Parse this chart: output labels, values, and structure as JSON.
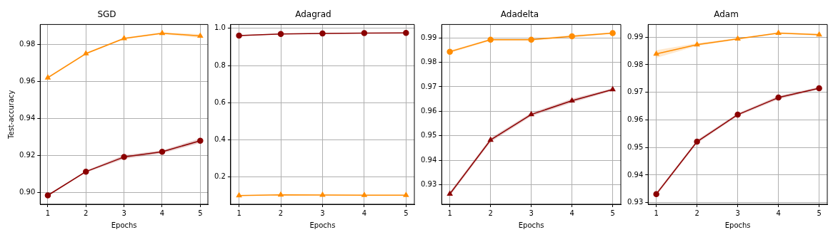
{
  "chart_data": [
    {
      "type": "line",
      "title": "SGD",
      "xlabel": "Epochs",
      "ylabel": "Test-accuracy",
      "x": [
        1,
        2,
        3,
        4,
        5
      ],
      "xlim": [
        0.8,
        5.2
      ],
      "xticks": [
        1,
        2,
        3,
        4,
        5
      ],
      "ylim": [
        0.8937,
        0.9907
      ],
      "yticks": [
        {
          "value": 0.9,
          "label": "0.90"
        },
        0.92,
        0.94,
        0.96,
        0.98
      ],
      "grid": true,
      "series": [
        {
          "color": "#ff8c00",
          "marker": "triangle",
          "values": [
            0.962,
            0.975,
            0.9832,
            0.986,
            0.9845
          ],
          "lower": [
            0.9615,
            0.9745,
            0.9827,
            0.9855,
            0.9835
          ],
          "upper": [
            0.9625,
            0.9755,
            0.9837,
            0.9865,
            0.9855
          ]
        },
        {
          "color": "#8b0000",
          "marker": "circle",
          "values": [
            0.8985,
            0.9113,
            0.9192,
            0.922,
            0.928
          ],
          "lower": [
            0.898,
            0.9108,
            0.9182,
            0.9212,
            0.9268
          ],
          "upper": [
            0.899,
            0.9118,
            0.9202,
            0.9228,
            0.9292
          ]
        }
      ]
    },
    {
      "type": "line",
      "title": "Adagrad",
      "xlabel": "Epochs",
      "x": [
        1,
        2,
        3,
        4,
        5
      ],
      "xlim": [
        0.8,
        5.2
      ],
      "xticks": [
        1,
        2,
        3,
        4,
        5
      ],
      "ylim": [
        0.054,
        1.021
      ],
      "yticks": [
        0.2,
        0.4,
        0.6,
        0.8,
        {
          "value": 1,
          "label": "1.0"
        }
      ],
      "grid": true,
      "series": [
        {
          "color": "#8b0000",
          "marker": "circle",
          "values": [
            0.961,
            0.97,
            0.973,
            0.975,
            0.976
          ],
          "lower": [
            0.958,
            0.968,
            0.971,
            0.973,
            0.974
          ],
          "upper": [
            0.964,
            0.972,
            0.975,
            0.977,
            0.978
          ]
        },
        {
          "color": "#ff8c00",
          "marker": "triangle",
          "values": [
            0.101,
            0.105,
            0.104,
            0.103,
            0.103
          ],
          "lower": [
            0.099,
            0.103,
            0.102,
            0.101,
            0.101
          ],
          "upper": [
            0.103,
            0.107,
            0.106,
            0.105,
            0.105
          ]
        }
      ]
    },
    {
      "type": "line",
      "title": "Adadelta",
      "xlabel": "Epochs",
      "x": [
        1,
        2,
        3,
        4,
        5
      ],
      "xlim": [
        0.8,
        5.2
      ],
      "xticks": [
        1,
        2,
        3,
        4,
        5
      ],
      "ylim": [
        0.9221,
        0.9954
      ],
      "yticks": [
        0.93,
        0.94,
        0.95,
        0.96,
        0.97,
        0.98,
        0.99
      ],
      "grid": true,
      "series": [
        {
          "color": "#ff8c00",
          "marker": "circle",
          "values": [
            0.9843,
            0.9892,
            0.9892,
            0.9906,
            0.9919
          ],
          "lower": [
            0.9838,
            0.9888,
            0.9888,
            0.9901,
            0.9916
          ],
          "upper": [
            0.9848,
            0.9896,
            0.9896,
            0.9911,
            0.9922
          ]
        },
        {
          "color": "#8b0000",
          "marker": "triangle",
          "values": [
            0.9263,
            0.9483,
            0.9587,
            0.9643,
            0.9689
          ],
          "lower": [
            0.9255,
            0.9475,
            0.958,
            0.9635,
            0.9684
          ],
          "upper": [
            0.9271,
            0.9491,
            0.9594,
            0.9651,
            0.9694
          ]
        }
      ]
    },
    {
      "type": "line",
      "title": "Adam",
      "xlabel": "Epochs",
      "x": [
        1,
        2,
        3,
        4,
        5
      ],
      "xlim": [
        0.8,
        5.2
      ],
      "xticks": [
        1,
        2,
        3,
        4,
        5
      ],
      "ylim": [
        0.9294,
        0.9946
      ],
      "yticks": [
        0.93,
        0.94,
        0.95,
        0.96,
        0.97,
        0.98,
        0.99
      ],
      "grid": true,
      "series": [
        {
          "color": "#ff8c00",
          "marker": "triangle",
          "values": [
            0.9839,
            0.9873,
            0.9894,
            0.9915,
            0.9909
          ],
          "lower": [
            0.9825,
            0.9868,
            0.9891,
            0.9912,
            0.9905
          ],
          "upper": [
            0.9853,
            0.9878,
            0.9897,
            0.9918,
            0.9913
          ]
        },
        {
          "color": "#8b0000",
          "marker": "circle",
          "values": [
            0.9331,
            0.9521,
            0.9619,
            0.9681,
            0.9715
          ],
          "lower": [
            0.9325,
            0.9515,
            0.9614,
            0.9675,
            0.9711
          ],
          "upper": [
            0.9337,
            0.9527,
            0.9624,
            0.9687,
            0.9719
          ]
        }
      ]
    }
  ]
}
